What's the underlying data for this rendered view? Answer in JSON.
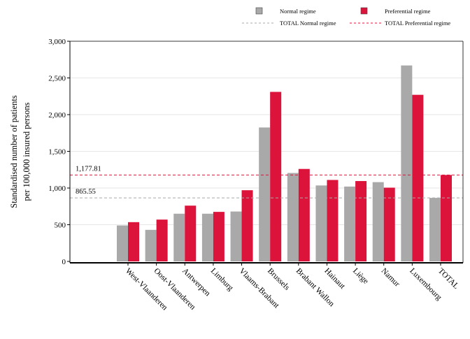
{
  "chart_data": {
    "type": "bar",
    "ylabel_lines": [
      "Standardised number of patients",
      "per 100,000 insured persons"
    ],
    "categories": [
      "West-Vlaanderen",
      "Oost-Vlaanderen",
      "Antwerpen",
      "Limburg",
      "Vlaams-Brabant",
      "Brussels",
      "Brabant Wallon",
      "Hainaut",
      "Liège",
      "Namur",
      "Luxembourg",
      "TOTAL"
    ],
    "series": [
      {
        "name": "Normal regime",
        "color": "#a9a9a9",
        "values": [
          490,
          430,
          650,
          650,
          680,
          1825,
          1205,
          1035,
          1020,
          1080,
          2670,
          865.55
        ]
      },
      {
        "name": "Preferential regime",
        "color": "#dc143c",
        "values": [
          535,
          570,
          760,
          675,
          970,
          2310,
          1260,
          1110,
          1095,
          1005,
          2270,
          1177.81
        ]
      }
    ],
    "reference_lines": [
      {
        "name": "TOTAL Normal regime",
        "value": 865.55,
        "label": "865.55",
        "color": "#a9a9a9"
      },
      {
        "name": "TOTAL Preferential regime",
        "value": 1177.81,
        "label": "1,177.81",
        "color": "#dc143c"
      }
    ],
    "yticks": [
      0,
      500,
      1000,
      1500,
      2000,
      2500,
      3000
    ],
    "ytick_labels": [
      "0",
      "500",
      "1,000",
      "1,500",
      "2,000",
      "2,500",
      "3,000"
    ],
    "ylim": [
      0,
      3000
    ],
    "grid": "horizontal",
    "legend_position": "top-right"
  }
}
